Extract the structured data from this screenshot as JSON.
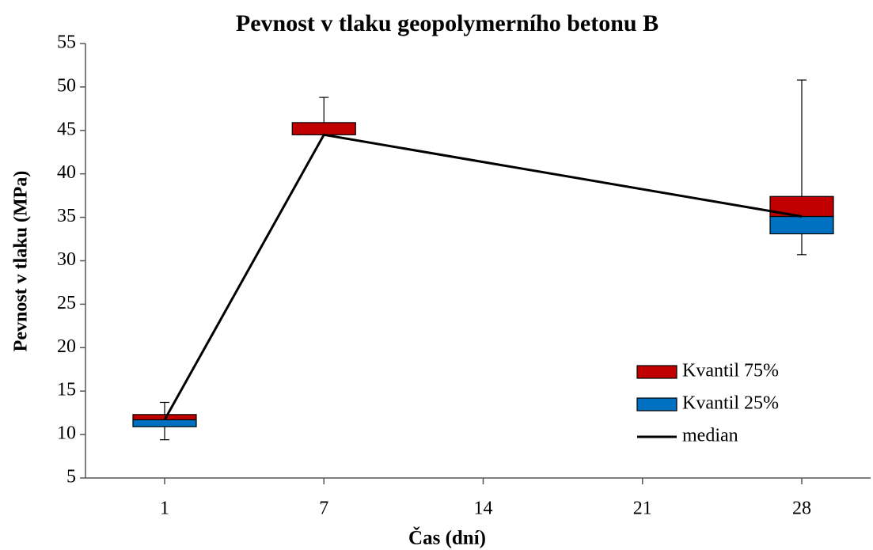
{
  "chart_data": {
    "type": "box",
    "title": "Pevnost v tlaku geopolymerního betonu B",
    "x_label": "Čas (dní)",
    "y_label": "Pevnost v tlaku (MPa)",
    "categories": [
      "1",
      "7",
      "14",
      "21",
      "28"
    ],
    "min": [
      9.4,
      44.5,
      null,
      null,
      30.7
    ],
    "q1": [
      10.9,
      44.5,
      null,
      null,
      33.1
    ],
    "median": [
      11.7,
      44.5,
      null,
      null,
      35.1
    ],
    "q3": [
      12.3,
      45.9,
      null,
      null,
      37.4
    ],
    "max": [
      13.7,
      48.8,
      null,
      null,
      50.8
    ],
    "series": [
      {
        "name": "Kvantil 75%",
        "color": "#c00000"
      },
      {
        "name": "Kvantil 25%",
        "color": "#0070c0"
      },
      {
        "name": "median",
        "color": "#000000"
      }
    ],
    "ylim": [
      5,
      55
    ],
    "yticks": [
      5,
      10,
      15,
      20,
      25,
      30,
      35,
      40,
      45,
      50,
      55
    ],
    "grid": false,
    "legend": "lower-right"
  }
}
